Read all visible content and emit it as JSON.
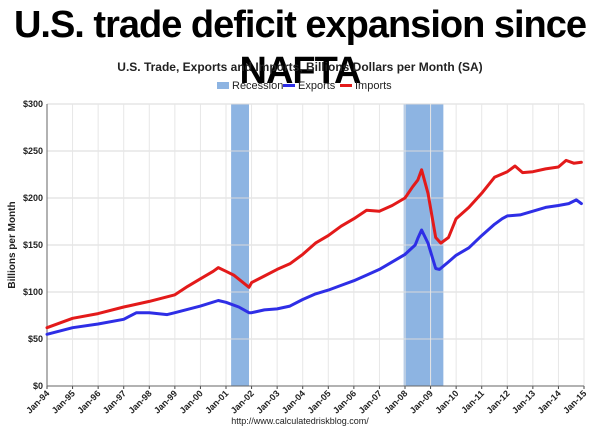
{
  "headline": "U.S. trade deficit expansion since NAFTA",
  "chart_data": {
    "type": "line",
    "title": "U.S. Trade, Exports and Imports, Billions Dollars per Month (SA)",
    "ylabel": "Billions per Month",
    "xlabel": "",
    "source": "http://www.calculatedriskblog.com/",
    "ylim": [
      0,
      300
    ],
    "y_ticks": [
      "$0",
      "$50",
      "$100",
      "$150",
      "$200",
      "$250",
      "$300"
    ],
    "x_ticks": [
      "Jan-94",
      "Jan-95",
      "Jan-96",
      "Jan-97",
      "Jan-98",
      "Jan-99",
      "Jan-00",
      "Jan-01",
      "Jan-02",
      "Jan-03",
      "Jan-04",
      "Jan-05",
      "Jan-06",
      "Jan-07",
      "Jan-08",
      "Jan-09",
      "Jan-10",
      "Jan-11",
      "Jan-12",
      "Jan-13",
      "Jan-14",
      "Jan-15"
    ],
    "grid": true,
    "legend_position": "top",
    "legend": [
      {
        "name": "Recession",
        "color": "#8db4e2"
      },
      {
        "name": "Exports",
        "color": "#2e2ee6"
      },
      {
        "name": "Imports",
        "color": "#e31a1a"
      }
    ],
    "recessions": [
      {
        "start": 2001.2,
        "end": 2001.9
      },
      {
        "start": 2007.95,
        "end": 2009.5
      }
    ],
    "series": [
      {
        "name": "Exports",
        "color": "#2e2ee6",
        "x": [
          1994.0,
          1995.0,
          1996.0,
          1997.0,
          1997.5,
          1998.0,
          1998.7,
          1999.0,
          2000.0,
          2000.7,
          2001.0,
          2001.5,
          2001.9,
          2002.0,
          2002.5,
          2003.0,
          2003.5,
          2004.0,
          2004.5,
          2005.0,
          2005.5,
          2006.0,
          2006.5,
          2007.0,
          2007.5,
          2008.0,
          2008.4,
          2008.5,
          2008.65,
          2008.9,
          2009.2,
          2009.35,
          2009.7,
          2010.0,
          2010.5,
          2011.0,
          2011.5,
          2011.8,
          2012.0,
          2012.5,
          2013.0,
          2013.5,
          2014.0,
          2014.4,
          2014.7,
          2014.9
        ],
        "values": [
          55,
          62,
          66,
          71,
          78,
          78,
          76,
          78,
          85,
          91,
          89,
          84,
          78,
          78,
          81,
          82,
          85,
          92,
          98,
          102,
          107,
          112,
          118,
          124,
          132,
          140,
          150,
          157,
          166,
          152,
          125,
          124,
          132,
          139,
          147,
          160,
          172,
          178,
          181,
          182,
          186,
          190,
          192,
          194,
          198,
          194
        ]
      },
      {
        "name": "Imports",
        "color": "#e31a1a",
        "x": [
          1994.0,
          1995.0,
          1996.0,
          1997.0,
          1998.0,
          1999.0,
          1999.5,
          2000.0,
          2000.5,
          2000.7,
          2001.0,
          2001.3,
          2001.9,
          2002.0,
          2002.5,
          2003.0,
          2003.5,
          2004.0,
          2004.5,
          2005.0,
          2005.5,
          2006.0,
          2006.5,
          2007.0,
          2007.5,
          2008.0,
          2008.3,
          2008.5,
          2008.65,
          2008.9,
          2009.2,
          2009.4,
          2009.7,
          2010.0,
          2010.5,
          2011.0,
          2011.5,
          2012.0,
          2012.3,
          2012.6,
          2013.0,
          2013.5,
          2014.0,
          2014.3,
          2014.6,
          2014.9
        ],
        "values": [
          62,
          72,
          77,
          84,
          90,
          97,
          106,
          114,
          122,
          126,
          122,
          118,
          105,
          110,
          117,
          124,
          130,
          140,
          152,
          160,
          170,
          178,
          187,
          186,
          192,
          200,
          212,
          219,
          230,
          205,
          158,
          152,
          158,
          178,
          190,
          205,
          222,
          228,
          234,
          227,
          228,
          231,
          233,
          240,
          237,
          238
        ]
      }
    ]
  }
}
